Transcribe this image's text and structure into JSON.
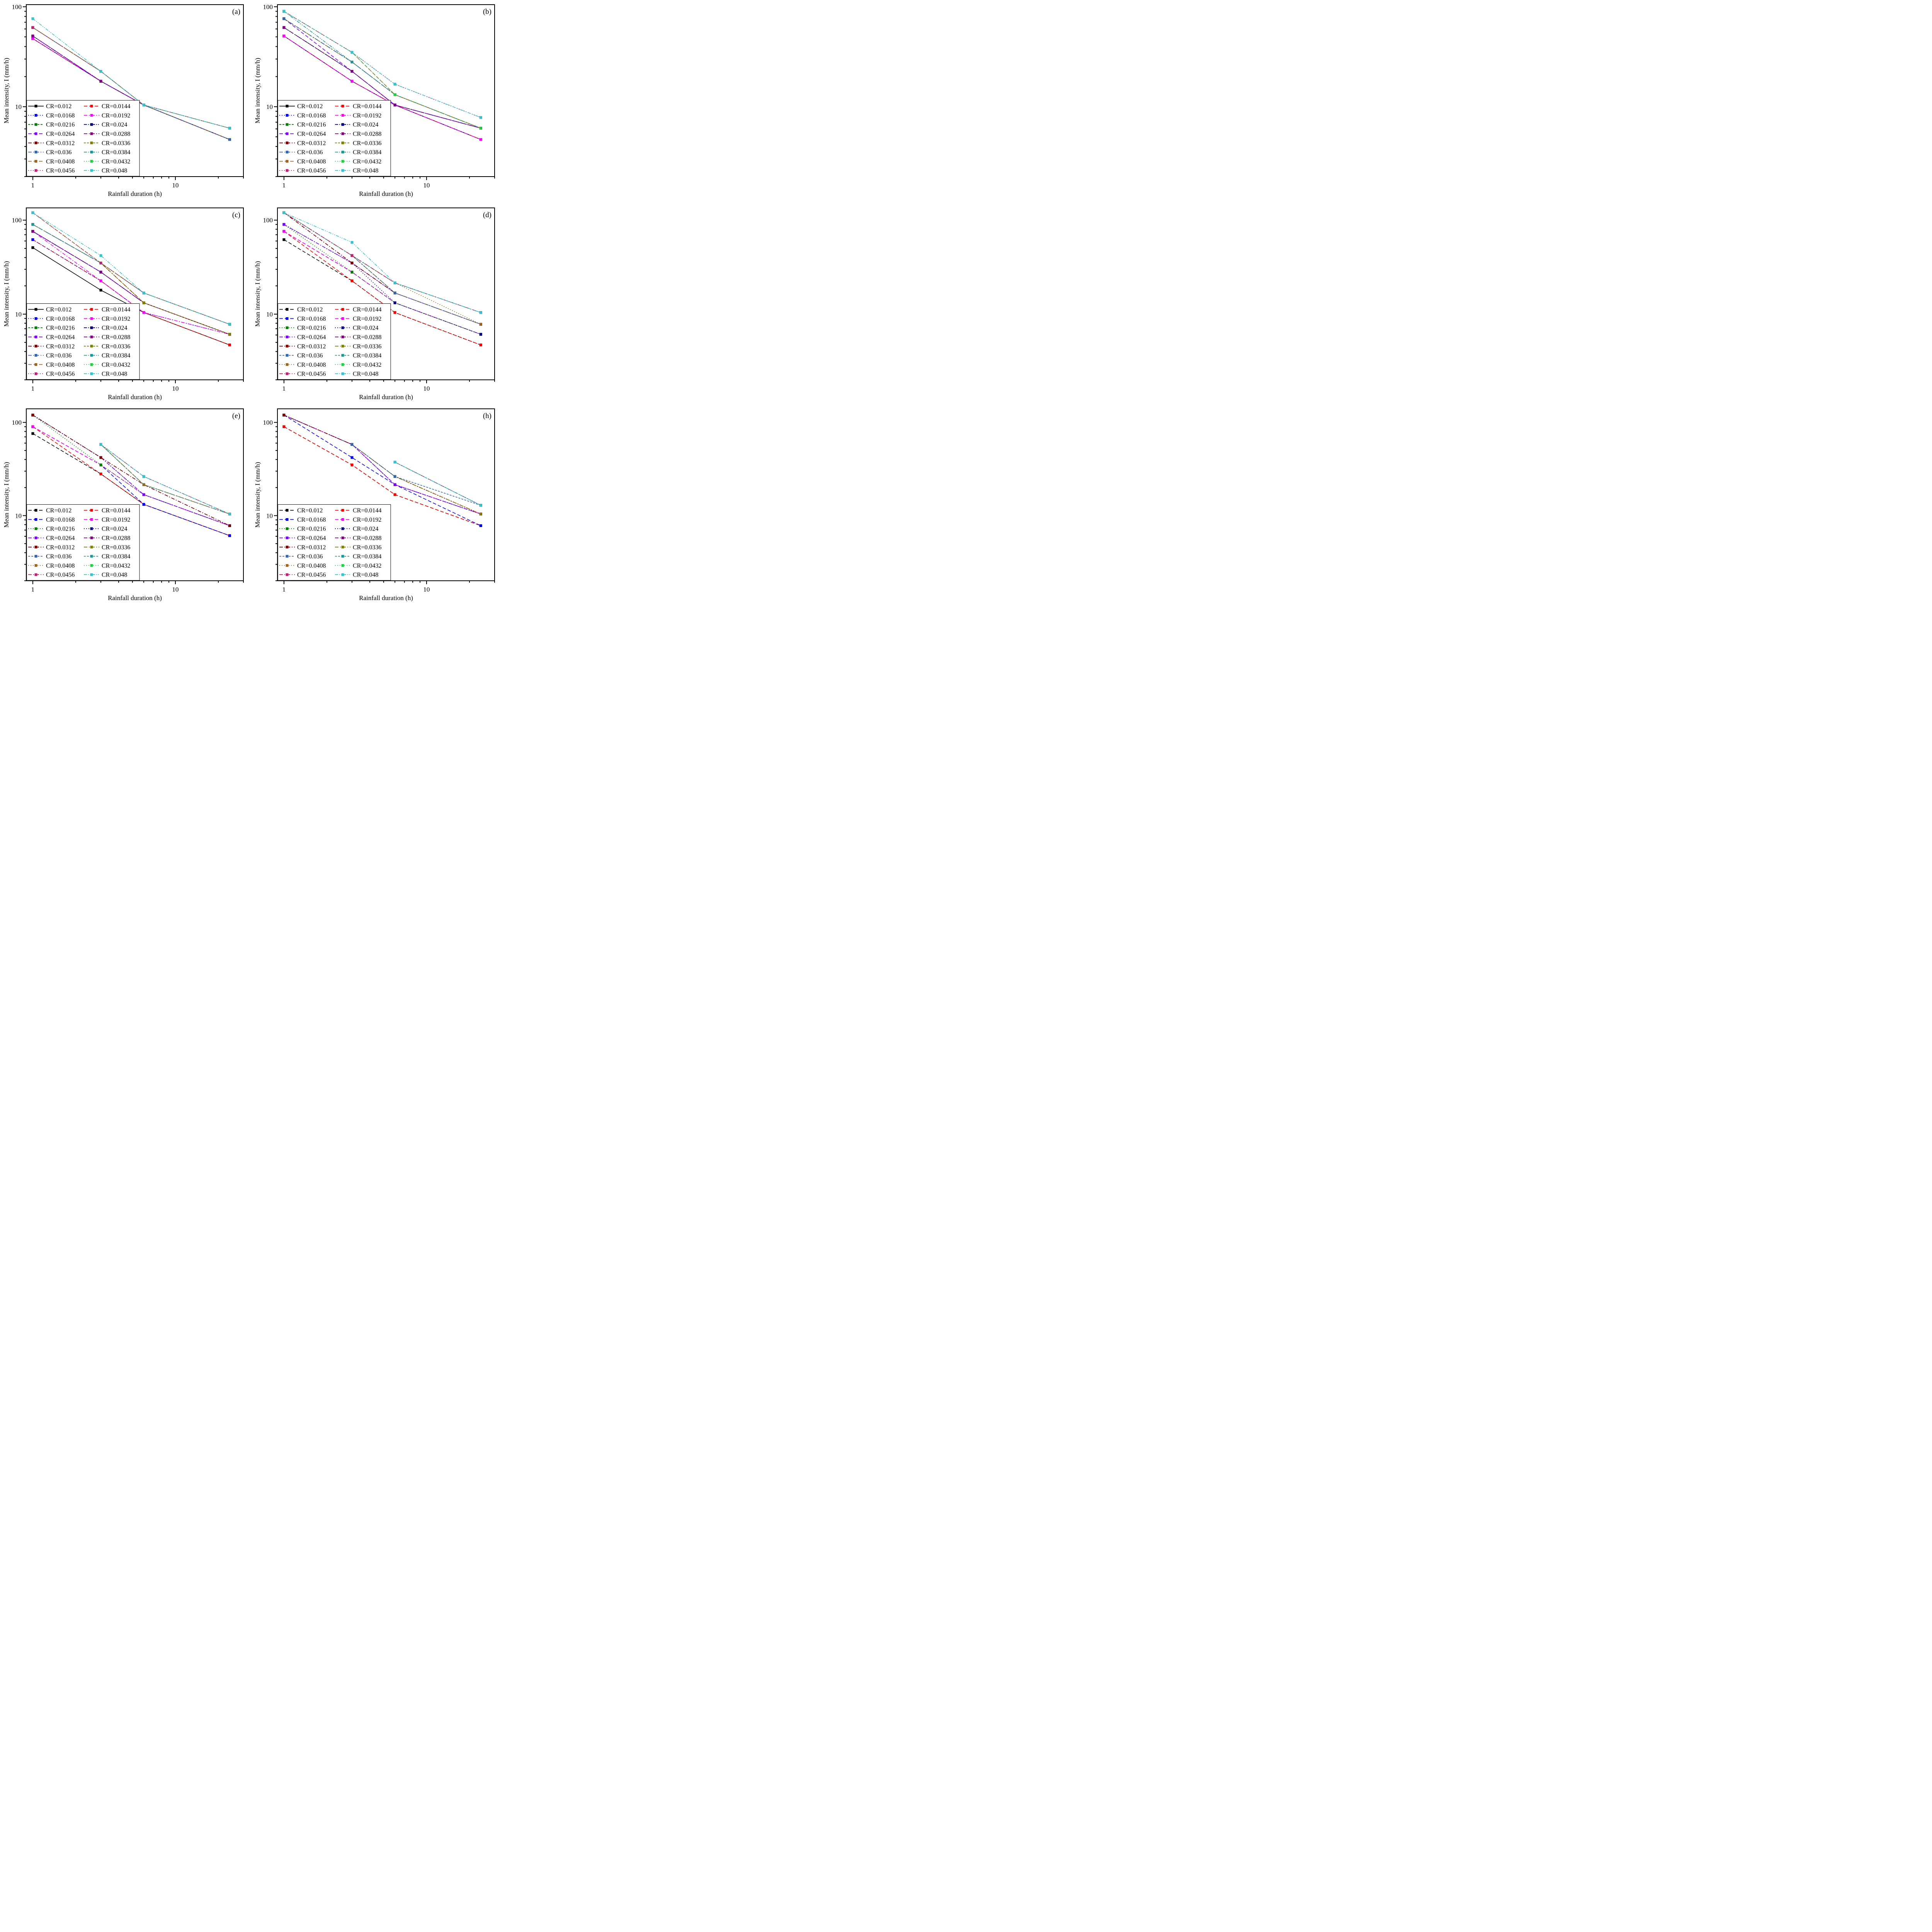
{
  "chart_data": {
    "type": "line",
    "x": [
      1,
      3,
      6,
      24
    ],
    "xlabel": "Rainfall duration (h)",
    "ylabel": "Mean intensity, I (mm/h)",
    "xscale": "log",
    "yscale": "log",
    "xlim": [
      0.9,
      30
    ],
    "x_ticks": [
      "1",
      "10"
    ],
    "legend_placement": "bottom-left",
    "grid": false,
    "series_styles": [
      {
        "name": "CR=0.012",
        "color": "#000000"
      },
      {
        "name": "CR=0.0144",
        "color": "#ff0000"
      },
      {
        "name": "CR=0.0168",
        "color": "#0000ff"
      },
      {
        "name": "CR=0.0192",
        "color": "#ff00ff"
      },
      {
        "name": "CR=0.0216",
        "color": "#008000"
      },
      {
        "name": "CR=0.024",
        "color": "#000080"
      },
      {
        "name": "CR=0.0264",
        "color": "#8000ff"
      },
      {
        "name": "CR=0.0288",
        "color": "#800080"
      },
      {
        "name": "CR=0.0312",
        "color": "#800000"
      },
      {
        "name": "CR=0.0336",
        "color": "#808000"
      },
      {
        "name": "CR=0.036",
        "color": "#3366aa"
      },
      {
        "name": "CR=0.0384",
        "color": "#1f9696"
      },
      {
        "name": "CR=0.0408",
        "color": "#996622"
      },
      {
        "name": "CR=0.0432",
        "color": "#22cc44"
      },
      {
        "name": "CR=0.0456",
        "color": "#bb2277"
      },
      {
        "name": "CR=0.048",
        "color": "#33c4cc"
      }
    ],
    "panels": [
      {
        "tag": "(a)",
        "ylim": [
          2,
          105
        ],
        "y_ticks": [
          "10",
          "100"
        ],
        "legend_dash": [
          "solid",
          "dash",
          "dot",
          "dashdot",
          "shortdash",
          "dashdotdot",
          "dash",
          "dashdot",
          "dashdot",
          "shortdash",
          "dashdot",
          "dashdotdot",
          "dash",
          "dot",
          "dot",
          "dashdotdot"
        ],
        "values": [
          [
            48,
            18,
            10.4,
            4.7
          ],
          [
            48,
            18,
            10.4,
            4.7
          ],
          [
            48,
            18,
            10.4,
            4.7
          ],
          [
            48,
            18,
            10.4,
            4.7
          ],
          [
            51,
            18,
            10.4,
            4.7
          ],
          [
            51,
            18,
            10.4,
            4.7
          ],
          [
            51,
            18,
            10.4,
            4.7
          ],
          [
            51,
            18,
            10.4,
            4.7
          ],
          [
            62,
            22.6,
            10.4,
            4.7
          ],
          [
            62,
            22.6,
            10.4,
            4.7
          ],
          [
            62,
            22.6,
            10.4,
            4.7
          ],
          [
            62,
            22.6,
            10.4,
            6.1
          ],
          [
            62,
            22.6,
            10.4,
            6.1
          ],
          [
            62,
            22.6,
            10.4,
            6.1
          ],
          [
            62,
            22.6,
            10.4,
            6.1
          ],
          [
            76,
            22.6,
            10.4,
            6.1
          ]
        ]
      },
      {
        "tag": "(b)",
        "ylim": [
          2,
          105
        ],
        "y_ticks": [
          "10",
          "100"
        ],
        "legend_dash": [
          "solid",
          "dash",
          "dot",
          "dashdot",
          "shortdash",
          "dashdotdot",
          "dash",
          "dashdot",
          "dashdot",
          "shortdash",
          "dashdot",
          "dashdotdot",
          "dash",
          "dot",
          "dot",
          "dashdotdot"
        ],
        "values": [
          [
            51,
            18,
            10.4,
            4.7
          ],
          [
            51,
            18,
            10.4,
            4.7
          ],
          [
            51,
            18,
            10.4,
            4.7
          ],
          [
            51,
            18,
            10.4,
            4.7
          ],
          [
            62,
            22.6,
            10.4,
            6.1
          ],
          [
            62,
            22.6,
            10.4,
            6.1
          ],
          [
            76,
            22.6,
            10.4,
            6.1
          ],
          [
            62,
            22.6,
            10.4,
            6.1
          ],
          [
            76,
            28,
            13.2,
            6.1
          ],
          [
            76,
            28,
            13.2,
            6.1
          ],
          [
            76,
            28,
            13.2,
            6.1
          ],
          [
            90,
            28,
            13.2,
            6.1
          ],
          [
            90,
            35,
            13.2,
            6.1
          ],
          [
            90,
            35,
            13.2,
            6.1
          ],
          [
            90,
            35,
            16.8,
            7.8
          ],
          [
            90,
            35,
            16.8,
            7.8
          ]
        ]
      },
      {
        "tag": "(c)",
        "ylim": [
          2,
          135
        ],
        "y_ticks": [
          "10",
          "100"
        ],
        "legend_dash": [
          "solid",
          "dash",
          "dot",
          "dashdot",
          "shortdash",
          "dashdotdot",
          "dash",
          "dashdot",
          "dashdot",
          "shortdash",
          "dashdot",
          "dashdotdot",
          "dash",
          "dot",
          "dot",
          "dashdotdot"
        ],
        "values": [
          [
            51,
            18,
            10.4,
            4.7
          ],
          [
            62,
            22.6,
            10.4,
            4.7
          ],
          [
            62,
            22.6,
            10.4,
            6.1
          ],
          [
            76,
            22.6,
            10.4,
            6.1
          ],
          [
            76,
            28,
            13.2,
            6.1
          ],
          [
            76,
            28,
            13.2,
            6.1
          ],
          [
            76,
            28,
            13.2,
            6.1
          ],
          [
            76,
            28,
            13.2,
            6.1
          ],
          [
            90,
            35,
            13.2,
            6.1
          ],
          [
            90,
            35,
            13.2,
            6.1
          ],
          [
            90,
            35,
            16.8,
            7.8
          ],
          [
            90,
            35,
            16.8,
            7.8
          ],
          [
            120,
            35,
            16.8,
            7.8
          ],
          [
            120,
            35,
            16.8,
            7.8
          ],
          [
            120,
            35,
            16.8,
            7.8
          ],
          [
            120,
            42,
            16.8,
            7.8
          ]
        ]
      },
      {
        "tag": "(d)",
        "ylim": [
          2,
          135
        ],
        "y_ticks": [
          "10",
          "100"
        ],
        "legend_dash": [
          "dash",
          "dash",
          "dash",
          "dash",
          "dot",
          "dot",
          "dashdot",
          "dashdot",
          "dashdot",
          "dashdot",
          "shortdash",
          "shortdash",
          "dot",
          "dot",
          "dashdot",
          "dashdotdot"
        ],
        "values": [
          [
            62,
            22.6,
            10.4,
            4.7
          ],
          [
            76,
            22.6,
            10.4,
            4.7
          ],
          [
            76,
            28,
            13.2,
            6.1
          ],
          [
            76,
            28,
            13.2,
            6.1
          ],
          [
            90,
            28,
            13.2,
            6.1
          ],
          [
            90,
            35,
            13.2,
            6.1
          ],
          [
            90,
            35,
            16.8,
            7.8
          ],
          [
            120,
            35,
            16.8,
            7.8
          ],
          [
            120,
            35,
            16.8,
            7.8
          ],
          [
            120,
            42,
            16.8,
            7.8
          ],
          [
            120,
            42,
            16.8,
            7.8
          ],
          [
            120,
            42,
            21.5,
            10.4
          ],
          [
            120,
            42,
            21.5,
            7.8
          ],
          [
            120,
            42,
            21.5,
            10.4
          ],
          [
            120,
            42,
            21.5,
            10.4
          ],
          [
            120,
            58,
            21.5,
            10.4
          ]
        ]
      },
      {
        "tag": "(e)",
        "ylim": [
          2,
          140
        ],
        "y_ticks": [
          "10",
          "100"
        ],
        "legend_dash": [
          "dash",
          "dash",
          "dash",
          "dash",
          "dot",
          "dot",
          "dashdot",
          "dashdot",
          "dashdot",
          "dashdot",
          "shortdash",
          "shortdash",
          "dot",
          "dot",
          "dashdot",
          "dashdotdot"
        ],
        "values": [
          [
            76,
            28,
            13.2,
            6.1
          ],
          [
            90,
            28,
            13.2,
            6.1
          ],
          [
            90,
            35,
            13.2,
            6.1
          ],
          [
            90,
            35,
            16.8,
            7.8
          ],
          [
            120,
            35,
            16.8,
            7.8
          ],
          [
            120,
            42,
            16.8,
            7.8
          ],
          [
            120,
            42,
            16.8,
            7.8
          ],
          [
            120,
            42,
            21.5,
            7.8
          ],
          [
            120,
            42,
            21.5,
            7.8
          ],
          [
            null,
            58,
            21.5,
            10.4
          ],
          [
            null,
            58,
            21.5,
            10.4
          ],
          [
            null,
            58,
            21.5,
            10.4
          ],
          [
            null,
            58,
            21.5,
            10.4
          ],
          [
            null,
            58,
            26.3,
            10.4
          ],
          [
            null,
            58,
            26.3,
            10.4
          ],
          [
            null,
            58,
            26.3,
            10.4
          ]
        ]
      },
      {
        "tag": "(h)",
        "ylim": [
          2,
          140
        ],
        "y_ticks": [
          "10",
          "100"
        ],
        "legend_dash": [
          "dash",
          "dash",
          "dash",
          "dash",
          "dot",
          "dot",
          "dashdot",
          "dashdot",
          "dashdot",
          "dashdot",
          "shortdash",
          "shortdash",
          "dot",
          "dot",
          "dashdot",
          "dashdotdot"
        ],
        "values": [
          [
            90,
            35,
            16.8,
            7.8
          ],
          [
            90,
            35,
            16.8,
            7.8
          ],
          [
            120,
            42,
            21.5,
            7.8
          ],
          [
            120,
            58,
            21.5,
            10.4
          ],
          [
            120,
            58,
            21.5,
            10.4
          ],
          [
            120,
            58,
            21.5,
            10.4
          ],
          [
            120,
            58,
            21.5,
            10.4
          ],
          [
            120,
            58,
            26.3,
            10.4
          ],
          [
            120,
            58,
            26.3,
            10.4
          ],
          [
            null,
            58,
            26.3,
            10.4
          ],
          [
            null,
            58,
            26.3,
            12.9
          ],
          [
            null,
            null,
            37.5,
            12.9
          ],
          [
            null,
            null,
            37.5,
            12.9
          ],
          [
            null,
            null,
            37.5,
            12.9
          ],
          [
            null,
            null,
            37.5,
            12.9
          ],
          [
            null,
            null,
            37.5,
            12.9
          ]
        ]
      }
    ]
  }
}
